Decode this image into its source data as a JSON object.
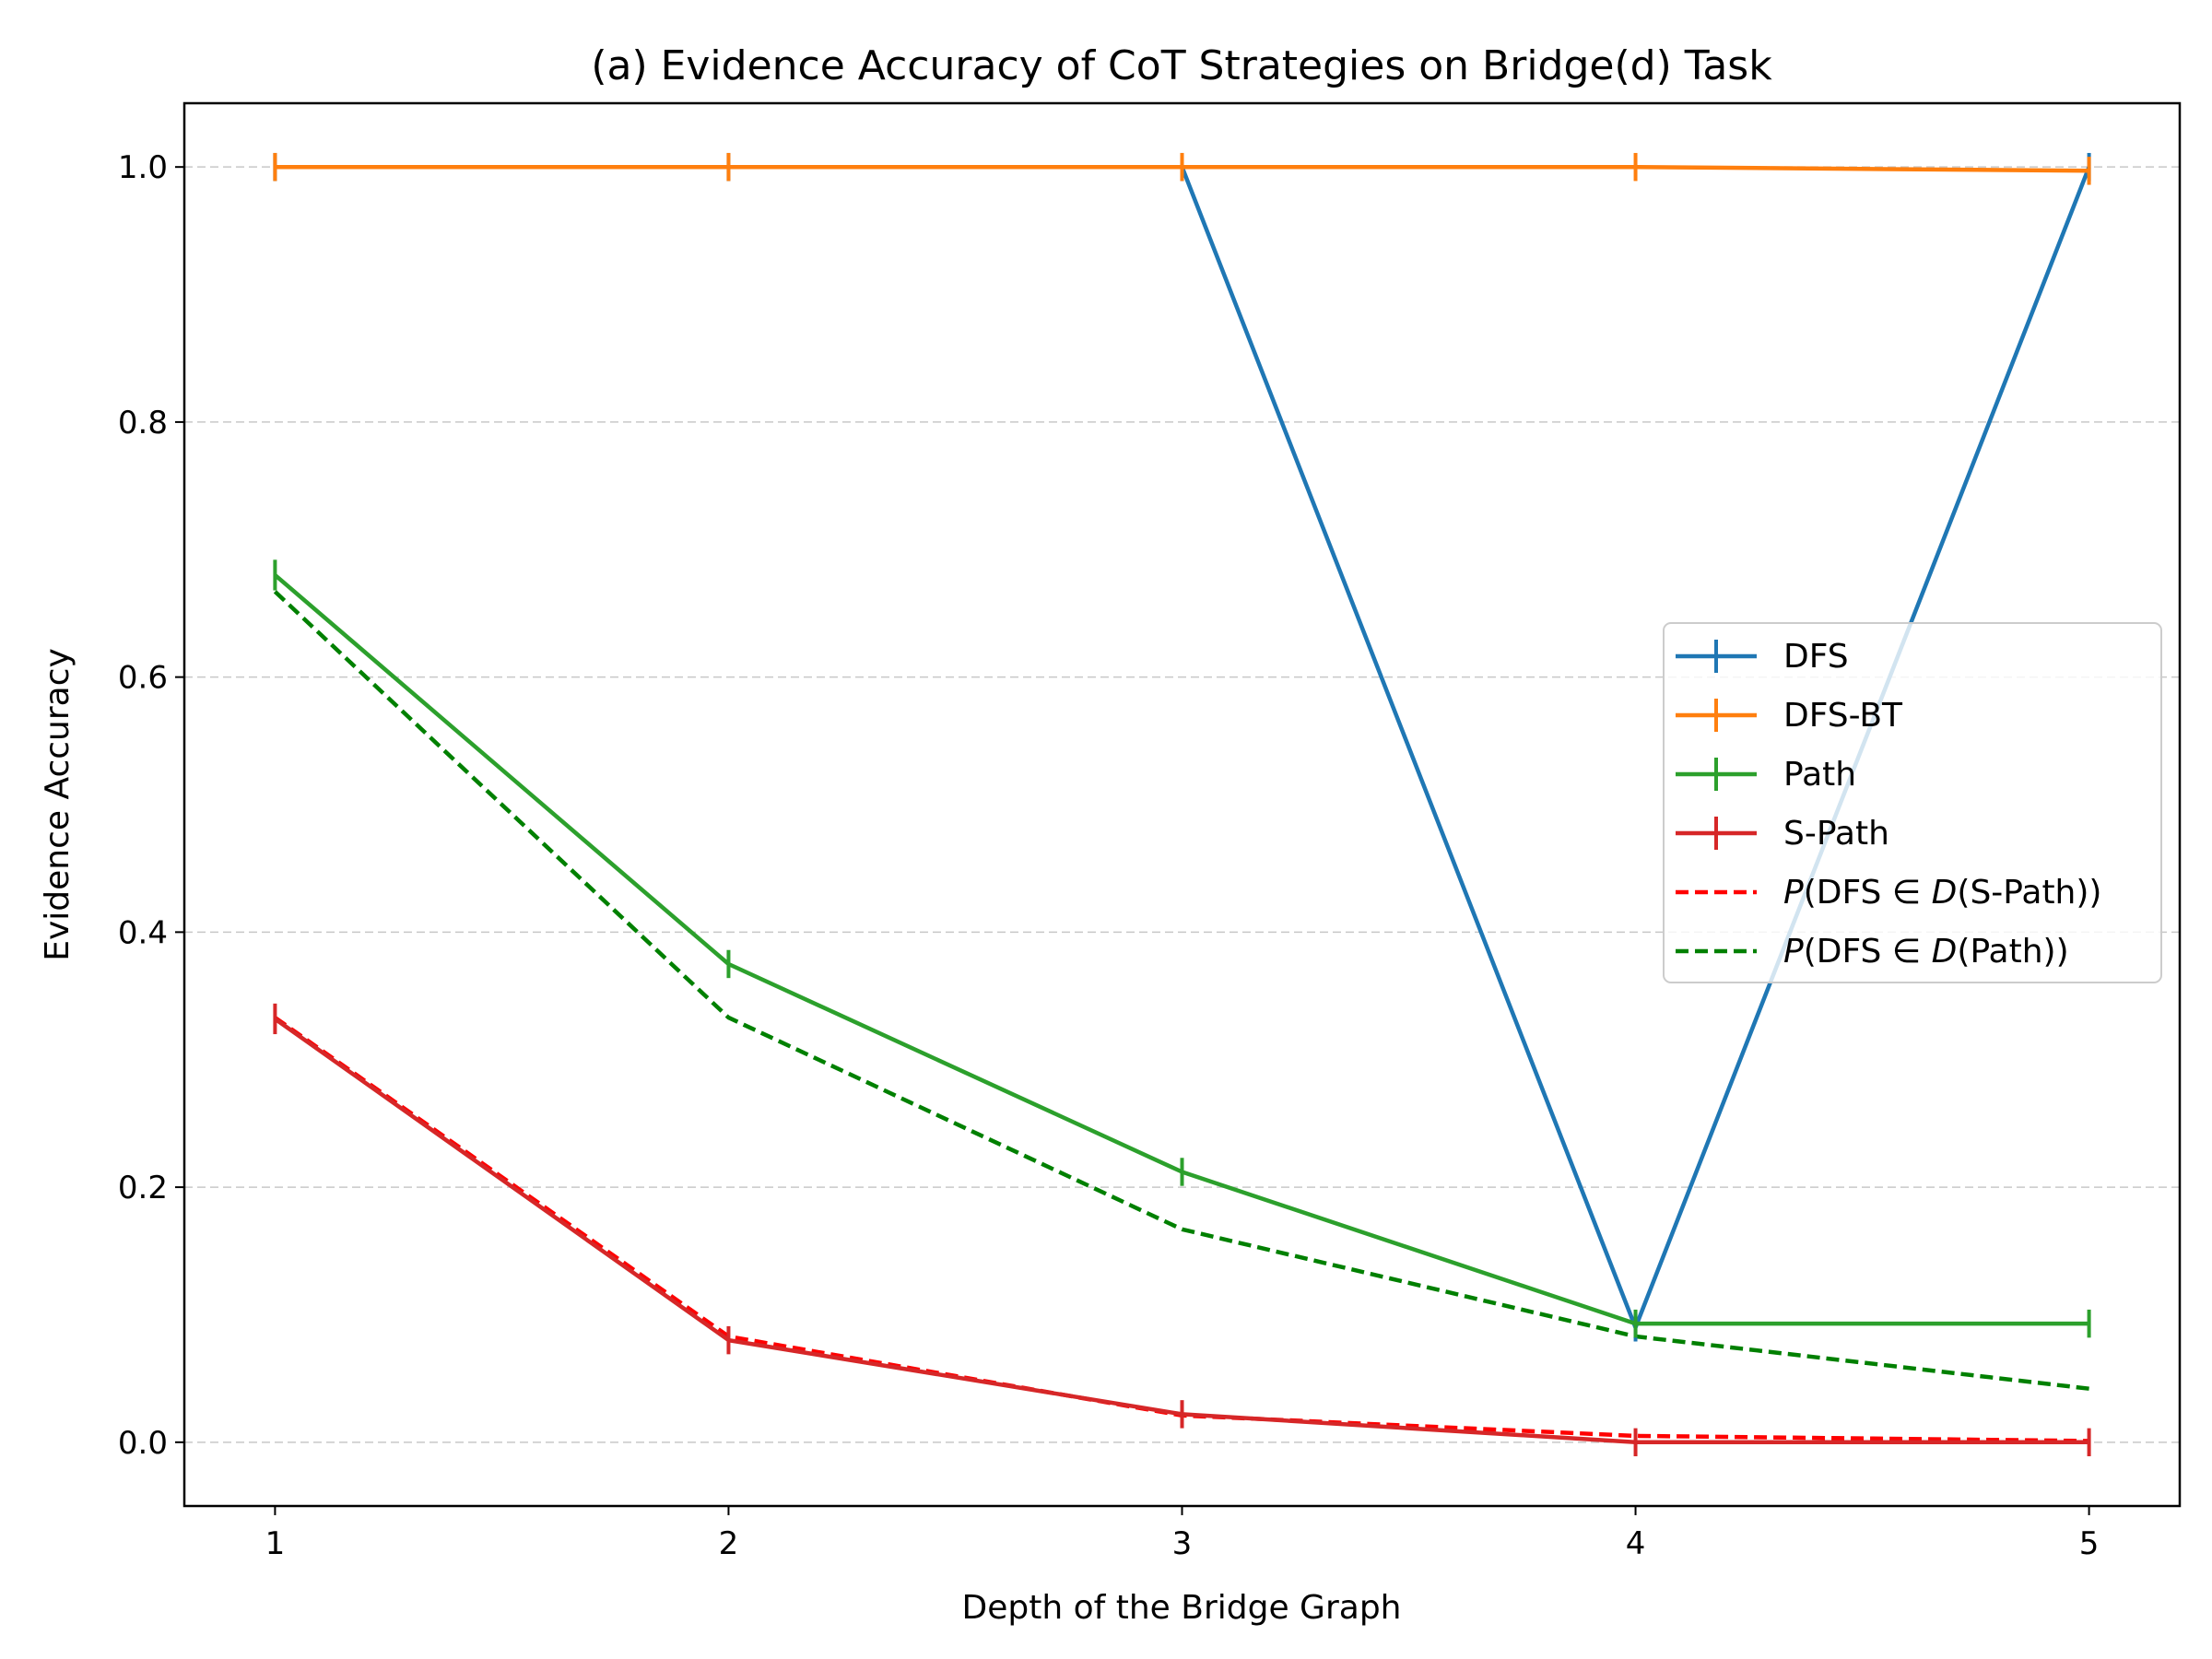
{
  "chart_data": {
    "type": "line",
    "title": "(a) Evidence Accuracy of CoT Strategies on Bridge(d) Task",
    "xlabel": "Depth of the Bridge Graph",
    "ylabel": "Evidence Accuracy",
    "x": [
      1,
      2,
      3,
      4,
      5
    ],
    "xlim": [
      0.8,
      5.2
    ],
    "ylim": [
      -0.05,
      1.05
    ],
    "xticks": [
      1,
      2,
      3,
      4,
      5
    ],
    "yticks": [
      0.0,
      0.2,
      0.4,
      0.6,
      0.8,
      1.0
    ],
    "ytick_labels": [
      "0.0",
      "0.2",
      "0.4",
      "0.6",
      "0.8",
      "1.0"
    ],
    "grid": "y-dashed",
    "legend_position": "center-right",
    "series": [
      {
        "name": "DFS",
        "values": [
          1.0,
          1.0,
          1.0,
          0.09,
          1.0
        ],
        "err": [
          0,
          0,
          0,
          0.01,
          0
        ],
        "color": "#1f77b4",
        "style": "solid",
        "errorbars": true
      },
      {
        "name": "DFS-BT",
        "values": [
          1.0,
          1.0,
          1.0,
          1.0,
          0.997
        ],
        "err": [
          0,
          0,
          0,
          0,
          0.003
        ],
        "color": "#ff7f0e",
        "style": "solid",
        "errorbars": true
      },
      {
        "name": "Path",
        "values": [
          0.68,
          0.375,
          0.212,
          0.093,
          0.093
        ],
        "err": [
          0.012,
          0.01,
          0.008,
          0.005,
          0.005
        ],
        "color": "#2ca02c",
        "style": "solid",
        "errorbars": true
      },
      {
        "name": "S-Path",
        "values": [
          0.332,
          0.08,
          0.022,
          0.0,
          0.0
        ],
        "err": [
          0.012,
          0.006,
          0.003,
          0,
          0
        ],
        "color": "#d62728",
        "style": "solid",
        "errorbars": true
      },
      {
        "name": "P(DFS ∈ D(S-Path))",
        "label_parts": [
          "P",
          "(DFS",
          " ∈ ",
          "D",
          "(S-Path))"
        ],
        "values": [
          0.333,
          0.083,
          0.021,
          0.005,
          0.001
        ],
        "color": "#ff0000",
        "style": "dashed",
        "errorbars": false
      },
      {
        "name": "P(DFS ∈ D(Path))",
        "label_parts": [
          "P",
          "(DFS",
          " ∈ ",
          "D",
          "(Path))"
        ],
        "values": [
          0.667,
          0.333,
          0.167,
          0.083,
          0.042
        ],
        "color": "#008000",
        "style": "dashed",
        "errorbars": false
      }
    ]
  }
}
